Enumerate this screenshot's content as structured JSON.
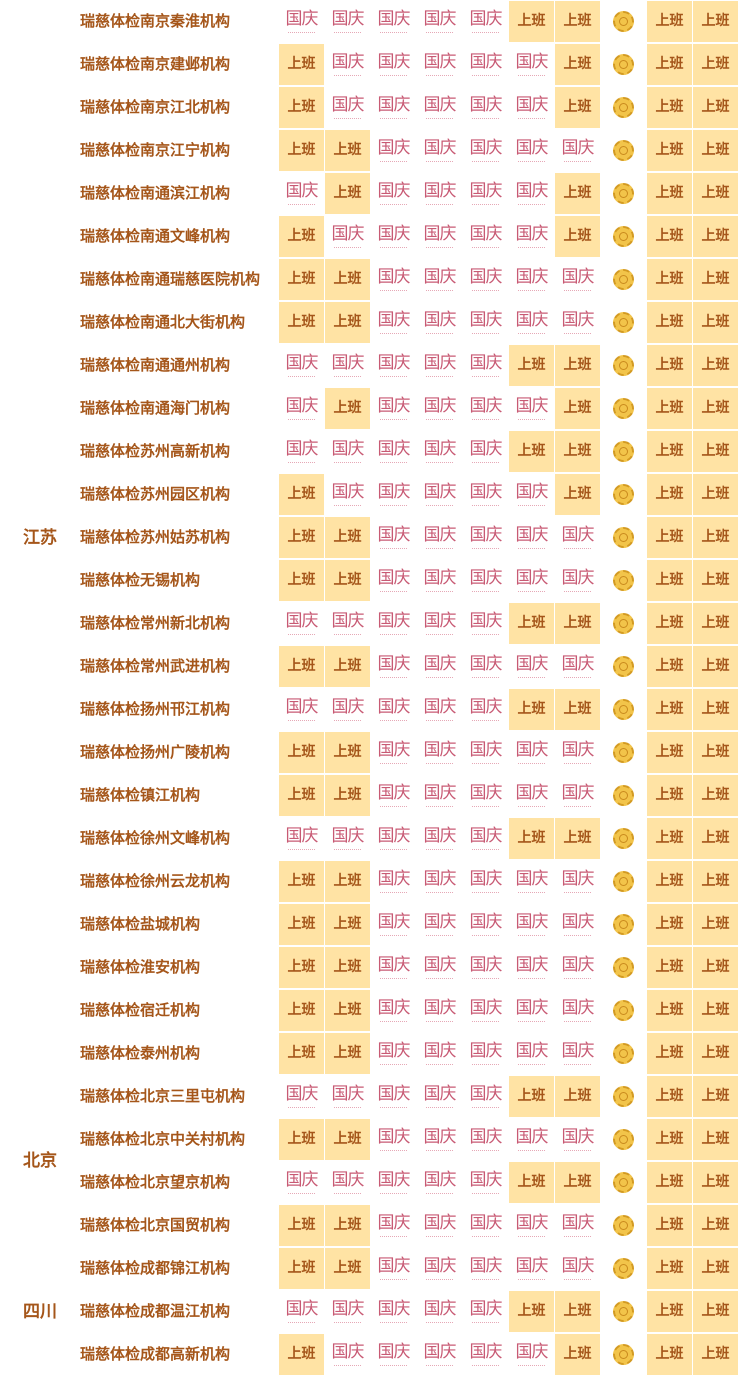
{
  "labels": {
    "work": "上班",
    "holiday": "国庆"
  },
  "colors": {
    "accent_text": "#a5561a",
    "work_bg": "#ffe3a4",
    "holiday_text": "#c85a74",
    "moon": "#f2c44a"
  },
  "legend": {
    "M": "mooncake-icon",
    "W": "上班",
    "H": "国庆"
  },
  "provinces": [
    {
      "name": "江苏",
      "first_row": 0,
      "last_row": 24
    },
    {
      "name": "北京",
      "first_row": 25,
      "last_row": 28
    },
    {
      "name": "四川",
      "first_row": 29,
      "last_row": 31
    }
  ],
  "rows": [
    {
      "name": "瑞慈体检南京秦淮机构",
      "days": "HHHHHWWMWW"
    },
    {
      "name": "瑞慈体检南京建邺机构",
      "days": "WHHHHHWMWW"
    },
    {
      "name": "瑞慈体检南京江北机构",
      "days": "WHHHHHWMWW"
    },
    {
      "name": "瑞慈体检南京江宁机构",
      "days": "WWHHHHHMWW"
    },
    {
      "name": "瑞慈体检南通滨江机构",
      "days": "HWHHHHWMWW"
    },
    {
      "name": "瑞慈体检南通文峰机构",
      "days": "WHHHHHWMWW"
    },
    {
      "name": "瑞慈体检南通瑞慈医院机构",
      "days": "WWHHHHHMWW"
    },
    {
      "name": "瑞慈体检南通北大街机构",
      "days": "WWHHHHHMWW"
    },
    {
      "name": "瑞慈体检南通通州机构",
      "days": "HHHHHWWMWW"
    },
    {
      "name": "瑞慈体检南通海门机构",
      "days": "HWHHHHWMWW"
    },
    {
      "name": "瑞慈体检苏州高新机构",
      "days": "HHHHHWWMWW"
    },
    {
      "name": "瑞慈体检苏州园区机构",
      "days": "WHHHHHWMWW"
    },
    {
      "name": "瑞慈体检苏州姑苏机构",
      "days": "WWHHHHHMWW"
    },
    {
      "name": "瑞慈体检无锡机构",
      "days": "WWHHHHHMWW"
    },
    {
      "name": "瑞慈体检常州新北机构",
      "days": "HHHHHWWMWW"
    },
    {
      "name": "瑞慈体检常州武进机构",
      "days": "WWHHHHHMWW"
    },
    {
      "name": "瑞慈体检扬州邗江机构",
      "days": "HHHHHWWMWW"
    },
    {
      "name": "瑞慈体检扬州广陵机构",
      "days": "WWHHHHHMWW"
    },
    {
      "name": "瑞慈体检镇江机构",
      "days": "WWHHHHHMWW"
    },
    {
      "name": "瑞慈体检徐州文峰机构",
      "days": "HHHHHWWMWW"
    },
    {
      "name": "瑞慈体检徐州云龙机构",
      "days": "WWHHHHHMWW"
    },
    {
      "name": "瑞慈体检盐城机构",
      "days": "WWHHHHHMWW"
    },
    {
      "name": "瑞慈体检淮安机构",
      "days": "WWHHHHHMWW"
    },
    {
      "name": "瑞慈体检宿迁机构",
      "days": "WWHHHHHMWW"
    },
    {
      "name": "瑞慈体检泰州机构",
      "days": "WWHHHHHMWW"
    },
    {
      "name": "瑞慈体检北京三里屯机构",
      "days": "HHHHHWWMWW"
    },
    {
      "name": "瑞慈体检北京中关村机构",
      "days": "WWHHHHHMWW"
    },
    {
      "name": "瑞慈体检北京望京机构",
      "days": "HHHHHWWMWW"
    },
    {
      "name": "瑞慈体检北京国贸机构",
      "days": "WWHHHHHMWW"
    },
    {
      "name": "瑞慈体检成都锦江机构",
      "days": "WWHHHHHMWW"
    },
    {
      "name": "瑞慈体检成都温江机构",
      "days": "HHHHHWWMWW"
    },
    {
      "name": "瑞慈体检成都高新机构",
      "days": "WHHHHHWMWW"
    }
  ]
}
